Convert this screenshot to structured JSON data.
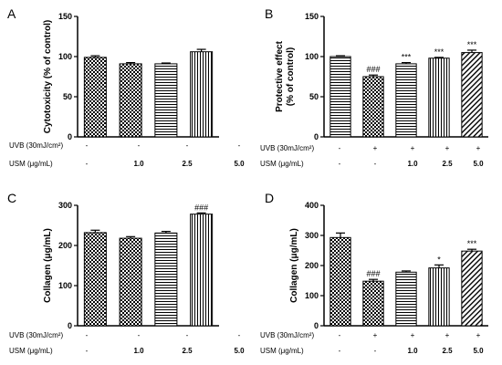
{
  "chart_data": [
    {
      "panel": "A",
      "type": "bar",
      "ylabel": "Cytotoxicity (% of control)",
      "ylim": [
        0,
        150
      ],
      "yticks": [
        0,
        50,
        100,
        150
      ],
      "categories": [
        "1",
        "2",
        "3",
        "4"
      ],
      "values": [
        99,
        91,
        91,
        106
      ],
      "errors": [
        2,
        1.5,
        1,
        3
      ],
      "patterns": [
        "checker",
        "checker",
        "hlines",
        "vlines"
      ],
      "annotations": [
        "",
        "",
        "",
        ""
      ],
      "conditions": [
        {
          "label": "UVB (30mJ/cm²)",
          "values": [
            "-",
            "-",
            "-",
            "-"
          ]
        },
        {
          "label": "USM (μg/mL)",
          "values": [
            "-",
            "1.0",
            "2.5",
            "5.0"
          ]
        }
      ]
    },
    {
      "panel": "B",
      "type": "bar",
      "ylabel": "Protective effect\n(% of control)",
      "ylim": [
        0,
        150
      ],
      "yticks": [
        0,
        50,
        100,
        150
      ],
      "categories": [
        "1",
        "2",
        "3",
        "4",
        "5"
      ],
      "values": [
        100,
        75,
        91,
        98,
        105
      ],
      "errors": [
        1,
        2,
        1.5,
        1,
        3
      ],
      "patterns": [
        "hlines",
        "checker",
        "hlines",
        "vlines",
        "diag"
      ],
      "annotations": [
        "",
        "###",
        "***",
        "***",
        "***"
      ],
      "conditions": [
        {
          "label": "UVB (30mJ/cm²)",
          "values": [
            "-",
            "+",
            "+",
            "+",
            "+"
          ]
        },
        {
          "label": "USM (μg/mL)",
          "values": [
            "-",
            "-",
            "1.0",
            "2.5",
            "5.0"
          ]
        }
      ]
    },
    {
      "panel": "C",
      "type": "bar",
      "ylabel": "Collagen (μg/mL)",
      "ylim": [
        0,
        300
      ],
      "yticks": [
        0,
        100,
        200,
        300
      ],
      "categories": [
        "1",
        "2",
        "3",
        "4"
      ],
      "values": [
        232,
        218,
        231,
        278
      ],
      "errors": [
        6,
        4,
        4,
        3
      ],
      "patterns": [
        "checker",
        "checker",
        "hlines",
        "vlines"
      ],
      "annotations": [
        "",
        "",
        "",
        "###"
      ],
      "conditions": [
        {
          "label": "UVB (30mJ/cm²)",
          "values": [
            "-",
            "-",
            "-",
            "-"
          ]
        },
        {
          "label": "USM (μg/mL)",
          "values": [
            "-",
            "1.0",
            "2.5",
            "5.0"
          ]
        }
      ]
    },
    {
      "panel": "D",
      "type": "bar",
      "ylabel": "Collagen (μg/mL)",
      "ylim": [
        0,
        400
      ],
      "yticks": [
        0,
        100,
        200,
        300,
        400
      ],
      "categories": [
        "1",
        "2",
        "3",
        "4",
        "5"
      ],
      "values": [
        293,
        148,
        178,
        192,
        248
      ],
      "errors": [
        15,
        6,
        4,
        10,
        6
      ],
      "patterns": [
        "checker",
        "checker",
        "hlines",
        "vlines",
        "diag"
      ],
      "annotations": [
        "",
        "###",
        "",
        "*",
        "***"
      ],
      "conditions": [
        {
          "label": "UVB (30mJ/cm²)",
          "values": [
            "-",
            "+",
            "+",
            "+",
            "+"
          ]
        },
        {
          "label": "USM (μg/mL)",
          "values": [
            "-",
            "-",
            "1.0",
            "2.5",
            "5.0"
          ]
        }
      ]
    }
  ]
}
